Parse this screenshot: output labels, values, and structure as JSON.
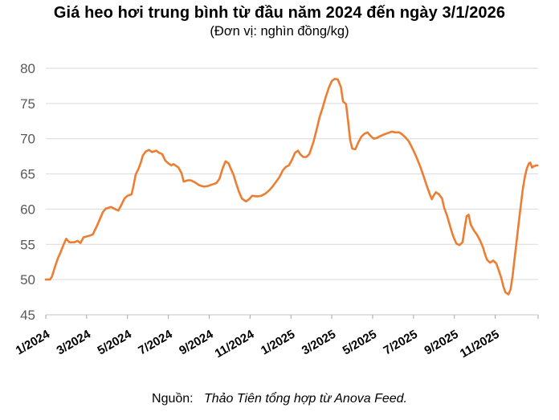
{
  "header": {
    "title": "Giá heo hơi trung bình từ đầu năm 2024 đến ngày 3/1/2026",
    "subtitle": "(Đơn vị: nghìn đồng/kg)"
  },
  "footer": {
    "source_label": "Nguồn:",
    "source_text": "Thảo Tiên tổng hợp từ Anova Feed."
  },
  "chart_data": {
    "type": "line",
    "title": "Giá heo hơi trung bình từ đầu năm 2024 đến ngày 3/1/2026",
    "unit": "nghìn đồng/kg",
    "grid": true,
    "legend_position": "none",
    "line_color": "#ED7D31",
    "grid_color": "#D9D9D9",
    "axis_color": "#C6C6C6",
    "tick_color": "#A6A6A6",
    "y_label_color": "#595959",
    "x_label_color": "#000000",
    "ylim": [
      45,
      80
    ],
    "y_ticks": [
      45,
      50,
      55,
      60,
      65,
      70,
      75,
      80
    ],
    "xlim_months": [
      0,
      24.1
    ],
    "x_ticks": [
      {
        "month": 0,
        "label": "1/2024"
      },
      {
        "month": 2,
        "label": "3/2024"
      },
      {
        "month": 4,
        "label": "5/2024"
      },
      {
        "month": 6,
        "label": "7/2024"
      },
      {
        "month": 8,
        "label": "9/2024"
      },
      {
        "month": 10,
        "label": "11/2024"
      },
      {
        "month": 12,
        "label": "1/2025"
      },
      {
        "month": 14,
        "label": "3/2025"
      },
      {
        "month": 16,
        "label": "5/2025"
      },
      {
        "month": 18,
        "label": "7/2025"
      },
      {
        "month": 20,
        "label": "9/2025"
      },
      {
        "month": 22,
        "label": "11/2025"
      }
    ],
    "series": [
      {
        "name": "Giá heo hơi trung bình (nghìn đồng/kg)",
        "points": [
          [
            0.0,
            50.0
          ],
          [
            0.2,
            50.0
          ],
          [
            0.3,
            50.4
          ],
          [
            0.45,
            51.8
          ],
          [
            0.6,
            53.1
          ],
          [
            0.7,
            53.7
          ],
          [
            0.85,
            54.8
          ],
          [
            1.0,
            55.8
          ],
          [
            1.15,
            55.3
          ],
          [
            1.4,
            55.3
          ],
          [
            1.55,
            55.5
          ],
          [
            1.7,
            55.2
          ],
          [
            1.85,
            56.0
          ],
          [
            2.1,
            56.2
          ],
          [
            2.3,
            56.4
          ],
          [
            2.5,
            57.6
          ],
          [
            2.65,
            58.6
          ],
          [
            2.8,
            59.6
          ],
          [
            2.95,
            60.1
          ],
          [
            3.2,
            60.3
          ],
          [
            3.4,
            60.0
          ],
          [
            3.55,
            59.8
          ],
          [
            3.7,
            60.6
          ],
          [
            3.85,
            61.5
          ],
          [
            4.0,
            61.9
          ],
          [
            4.2,
            62.1
          ],
          [
            4.3,
            63.4
          ],
          [
            4.4,
            64.9
          ],
          [
            4.55,
            65.8
          ],
          [
            4.65,
            66.6
          ],
          [
            4.75,
            67.6
          ],
          [
            4.9,
            68.2
          ],
          [
            5.05,
            68.4
          ],
          [
            5.2,
            68.1
          ],
          [
            5.4,
            68.3
          ],
          [
            5.55,
            68.0
          ],
          [
            5.7,
            67.8
          ],
          [
            5.85,
            66.9
          ],
          [
            6.0,
            66.5
          ],
          [
            6.15,
            66.2
          ],
          [
            6.25,
            66.4
          ],
          [
            6.4,
            66.1
          ],
          [
            6.5,
            65.9
          ],
          [
            6.65,
            65.1
          ],
          [
            6.75,
            63.9
          ],
          [
            6.95,
            64.1
          ],
          [
            7.1,
            64.1
          ],
          [
            7.3,
            63.8
          ],
          [
            7.5,
            63.4
          ],
          [
            7.75,
            63.2
          ],
          [
            7.95,
            63.3
          ],
          [
            8.15,
            63.5
          ],
          [
            8.35,
            63.7
          ],
          [
            8.5,
            64.3
          ],
          [
            8.65,
            65.7
          ],
          [
            8.8,
            66.8
          ],
          [
            8.95,
            66.5
          ],
          [
            9.05,
            65.8
          ],
          [
            9.2,
            64.8
          ],
          [
            9.3,
            63.8
          ],
          [
            9.45,
            62.5
          ],
          [
            9.6,
            61.5
          ],
          [
            9.8,
            61.1
          ],
          [
            9.95,
            61.4
          ],
          [
            10.1,
            61.9
          ],
          [
            10.35,
            61.8
          ],
          [
            10.55,
            61.9
          ],
          [
            10.75,
            62.2
          ],
          [
            10.95,
            62.7
          ],
          [
            11.1,
            63.2
          ],
          [
            11.25,
            63.8
          ],
          [
            11.45,
            64.6
          ],
          [
            11.6,
            65.5
          ],
          [
            11.75,
            66.0
          ],
          [
            11.9,
            66.2
          ],
          [
            12.05,
            67.0
          ],
          [
            12.2,
            68.0
          ],
          [
            12.35,
            68.3
          ],
          [
            12.45,
            67.8
          ],
          [
            12.6,
            67.4
          ],
          [
            12.75,
            67.4
          ],
          [
            12.9,
            67.8
          ],
          [
            13.1,
            69.5
          ],
          [
            13.25,
            71.2
          ],
          [
            13.4,
            73.0
          ],
          [
            13.55,
            74.4
          ],
          [
            13.7,
            75.9
          ],
          [
            13.85,
            77.2
          ],
          [
            14.0,
            78.2
          ],
          [
            14.15,
            78.5
          ],
          [
            14.3,
            78.4
          ],
          [
            14.45,
            77.3
          ],
          [
            14.55,
            75.3
          ],
          [
            14.7,
            74.9
          ],
          [
            14.8,
            72.5
          ],
          [
            14.9,
            69.8
          ],
          [
            15.0,
            68.6
          ],
          [
            15.15,
            68.5
          ],
          [
            15.3,
            69.5
          ],
          [
            15.45,
            70.3
          ],
          [
            15.6,
            70.7
          ],
          [
            15.75,
            70.9
          ],
          [
            15.9,
            70.4
          ],
          [
            16.05,
            70.0
          ],
          [
            16.2,
            70.1
          ],
          [
            16.4,
            70.4
          ],
          [
            16.55,
            70.6
          ],
          [
            16.75,
            70.8
          ],
          [
            16.95,
            71.0
          ],
          [
            17.1,
            70.9
          ],
          [
            17.3,
            70.9
          ],
          [
            17.45,
            70.6
          ],
          [
            17.6,
            70.2
          ],
          [
            17.75,
            69.7
          ],
          [
            17.9,
            68.9
          ],
          [
            18.05,
            68.0
          ],
          [
            18.2,
            67.0
          ],
          [
            18.35,
            65.9
          ],
          [
            18.5,
            64.6
          ],
          [
            18.65,
            63.3
          ],
          [
            18.8,
            62.1
          ],
          [
            18.9,
            61.4
          ],
          [
            19.0,
            62.0
          ],
          [
            19.1,
            62.4
          ],
          [
            19.25,
            62.1
          ],
          [
            19.4,
            61.5
          ],
          [
            19.5,
            60.2
          ],
          [
            19.65,
            59.0
          ],
          [
            19.8,
            57.5
          ],
          [
            19.95,
            56.1
          ],
          [
            20.1,
            55.1
          ],
          [
            20.25,
            54.9
          ],
          [
            20.4,
            55.3
          ],
          [
            20.5,
            57.2
          ],
          [
            20.6,
            59.0
          ],
          [
            20.7,
            59.2
          ],
          [
            20.8,
            57.8
          ],
          [
            20.95,
            57.0
          ],
          [
            21.1,
            56.4
          ],
          [
            21.25,
            55.6
          ],
          [
            21.4,
            54.6
          ],
          [
            21.5,
            53.6
          ],
          [
            21.6,
            52.8
          ],
          [
            21.75,
            52.4
          ],
          [
            21.9,
            52.7
          ],
          [
            22.05,
            52.3
          ],
          [
            22.15,
            51.5
          ],
          [
            22.3,
            50.2
          ],
          [
            22.4,
            49.0
          ],
          [
            22.5,
            48.2
          ],
          [
            22.65,
            47.9
          ],
          [
            22.75,
            48.6
          ],
          [
            22.85,
            50.5
          ],
          [
            22.95,
            53.0
          ],
          [
            23.05,
            55.5
          ],
          [
            23.15,
            58.0
          ],
          [
            23.25,
            60.5
          ],
          [
            23.35,
            62.8
          ],
          [
            23.45,
            64.6
          ],
          [
            23.55,
            65.8
          ],
          [
            23.65,
            66.5
          ],
          [
            23.72,
            66.6
          ],
          [
            23.8,
            65.9
          ],
          [
            23.9,
            66.1
          ],
          [
            24.0,
            66.2
          ],
          [
            24.07,
            66.2
          ]
        ]
      }
    ]
  }
}
